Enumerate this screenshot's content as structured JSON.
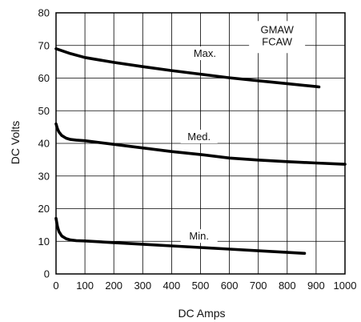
{
  "chart_data": {
    "type": "line",
    "xlabel": "DC Amps",
    "ylabel": "DC Volts",
    "xlim": [
      0,
      1000
    ],
    "ylim": [
      0,
      80
    ],
    "xticks": [
      0,
      100,
      200,
      300,
      400,
      500,
      600,
      700,
      800,
      900,
      1000
    ],
    "yticks": [
      0,
      10,
      20,
      30,
      40,
      50,
      60,
      70,
      80
    ],
    "grid": true,
    "legend": {
      "lines": [
        "GMAW",
        "FCAW"
      ],
      "placement": "top-right"
    },
    "series": [
      {
        "name": "Max.",
        "x": [
          0,
          50,
          100,
          200,
          300,
          400,
          500,
          600,
          700,
          800,
          900,
          910
        ],
        "y": [
          69,
          67.5,
          66.3,
          64.8,
          63.5,
          62.3,
          61.2,
          60.1,
          59.2,
          58.3,
          57.4,
          57.3
        ]
      },
      {
        "name": "Med.",
        "x": [
          0,
          5,
          10,
          20,
          35,
          50,
          70,
          100,
          200,
          300,
          400,
          500,
          600,
          700,
          800,
          900,
          1000
        ],
        "y": [
          46,
          44.5,
          43.5,
          42.4,
          41.6,
          41.2,
          41.0,
          40.8,
          39.7,
          38.6,
          37.5,
          36.6,
          35.5,
          34.9,
          34.4,
          34.0,
          33.6
        ]
      },
      {
        "name": "Min.",
        "x": [
          0,
          5,
          10,
          20,
          35,
          50,
          70,
          100,
          200,
          300,
          400,
          500,
          600,
          700,
          800,
          860
        ],
        "y": [
          17,
          14.5,
          13,
          11.6,
          10.8,
          10.4,
          10.2,
          10.1,
          9.6,
          9.1,
          8.6,
          8.1,
          7.6,
          7.1,
          6.6,
          6.3
        ]
      }
    ],
    "series_labels": [
      {
        "text": "Max.",
        "x": 515,
        "y": 66.5
      },
      {
        "text": "Med.",
        "x": 495,
        "y": 41
      },
      {
        "text": "Min.",
        "x": 495,
        "y": 10.5
      }
    ]
  }
}
